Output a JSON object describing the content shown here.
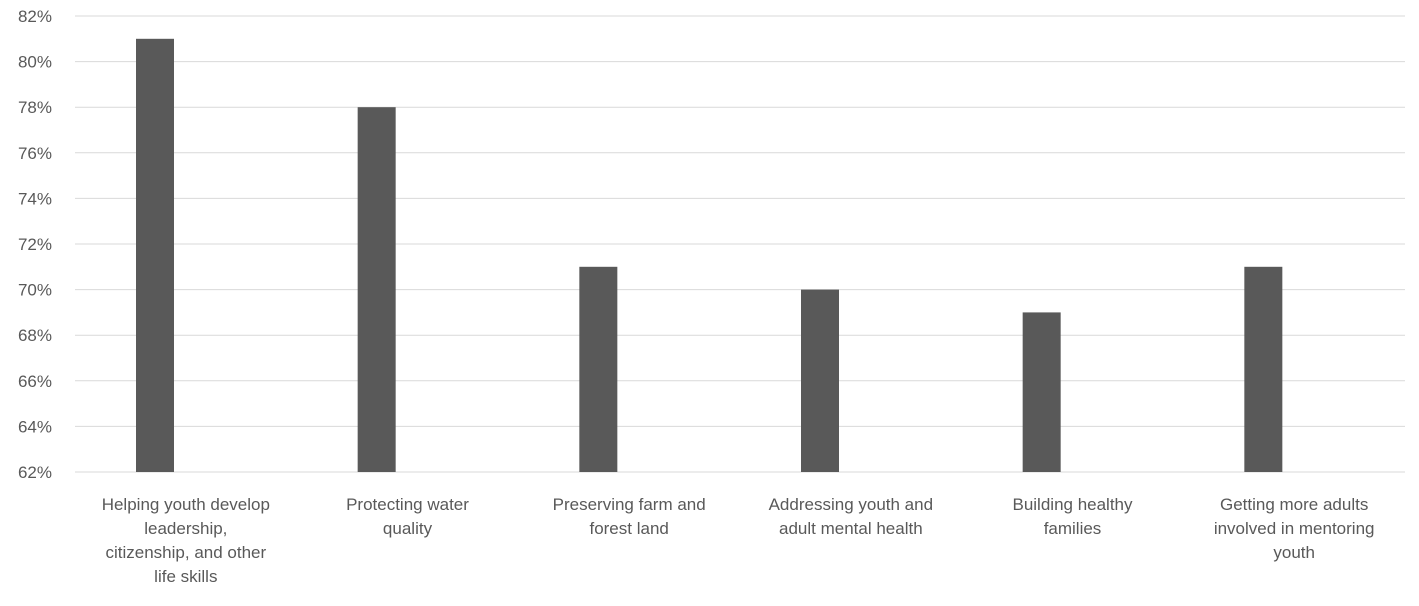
{
  "chart_data": {
    "type": "bar",
    "title": "",
    "xlabel": "",
    "ylabel": "",
    "categories": [
      [
        "Helping youth develop",
        "leadership,",
        "citizenship, and other",
        "life skills"
      ],
      [
        "Protecting water",
        "quality"
      ],
      [
        "Preserving farm and",
        "forest land"
      ],
      [
        "Addressing youth and",
        "adult mental health"
      ],
      [
        "Building healthy",
        "families"
      ],
      [
        "Getting more adults",
        "involved in mentoring",
        "youth"
      ]
    ],
    "values": [
      81,
      78,
      71,
      70,
      69,
      71
    ],
    "value_unit": "percent",
    "ylim": [
      62,
      82
    ],
    "ytick_step": 2,
    "ytick_labels": [
      "62%",
      "64%",
      "66%",
      "68%",
      "70%",
      "72%",
      "74%",
      "76%",
      "78%",
      "80%",
      "82%"
    ],
    "grid": true,
    "legend": "none",
    "bar_color": "#595959",
    "grid_color": "#d9d9d9",
    "label_color": "#595959"
  }
}
